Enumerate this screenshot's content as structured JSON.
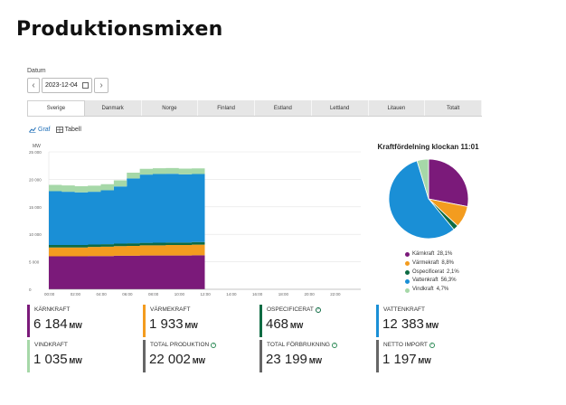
{
  "page_title": "Produktionsmixen",
  "date": {
    "label": "Datum",
    "value": "2023-12-04",
    "prev": "‹",
    "next": "›"
  },
  "tabs": [
    {
      "label": "Sverige",
      "active": true
    },
    {
      "label": "Danmark",
      "active": false
    },
    {
      "label": "Norge",
      "active": false
    },
    {
      "label": "Finland",
      "active": false
    },
    {
      "label": "Estland",
      "active": false
    },
    {
      "label": "Lettland",
      "active": false
    },
    {
      "label": "Litauen",
      "active": false
    },
    {
      "label": "Totalt",
      "active": false
    }
  ],
  "view_toggle": {
    "graf": "Graf",
    "tabell": "Tabell"
  },
  "colors": {
    "karnkraft": "#7b1a7a",
    "varmekraft": "#f39c1f",
    "ospecificerat": "#0e6b43",
    "vattenkraft": "#1a8fd6",
    "vindkraft": "#a6d8a8"
  },
  "chart_data": [
    {
      "type": "area",
      "ylabel": "MW",
      "ylim": [
        0,
        25000
      ],
      "yticks": [
        "0",
        "5 000",
        "10 000",
        "15 000",
        "20 000",
        "25 000"
      ],
      "xticks": [
        "00:00",
        "02:00",
        "04:00",
        "06:00",
        "08:00",
        "10:00",
        "12:00",
        "14:00",
        "16:00",
        "18:00",
        "20:00",
        "22:00"
      ],
      "x": [
        "00:00",
        "01:00",
        "02:00",
        "03:00",
        "04:00",
        "05:00",
        "06:00",
        "07:00",
        "08:00",
        "09:00",
        "10:00",
        "11:00"
      ],
      "series": [
        {
          "name": "Kärnkraft",
          "values": [
            6000,
            6000,
            6000,
            6050,
            6050,
            6100,
            6100,
            6150,
            6150,
            6150,
            6150,
            6184
          ]
        },
        {
          "name": "Värmekraft",
          "values": [
            1600,
            1600,
            1600,
            1650,
            1700,
            1750,
            1800,
            1850,
            1850,
            1900,
            1900,
            1933
          ]
        },
        {
          "name": "Ospecificerat",
          "values": [
            450,
            450,
            450,
            450,
            460,
            460,
            460,
            460,
            465,
            465,
            468,
            468
          ]
        },
        {
          "name": "Vattenkraft",
          "values": [
            9800,
            9700,
            9600,
            9600,
            9800,
            10400,
            11800,
            12400,
            12500,
            12500,
            12400,
            12383
          ]
        },
        {
          "name": "Vindkraft",
          "values": [
            1150,
            1150,
            1100,
            1100,
            1100,
            1100,
            1050,
            1050,
            1050,
            1050,
            1040,
            1035
          ]
        }
      ]
    },
    {
      "type": "pie",
      "title": "Kraftfördelning klockan 11:01",
      "series": [
        {
          "name": "Kärnkraft",
          "value": 28.1,
          "label": "28,1%"
        },
        {
          "name": "Värmekraft",
          "value": 8.8,
          "label": "8,8%"
        },
        {
          "name": "Ospecificerat",
          "value": 2.1,
          "label": "2,1%"
        },
        {
          "name": "Vattenkraft",
          "value": 56.3,
          "label": "56,3%"
        },
        {
          "name": "Vindkraft",
          "value": 4.7,
          "label": "4,7%"
        }
      ]
    }
  ],
  "legend": [
    {
      "name": "Kärnkraft",
      "pct": "28,1%",
      "color": "#7b1a7a"
    },
    {
      "name": "Värmekraft",
      "pct": "8,8%",
      "color": "#f39c1f"
    },
    {
      "name": "Ospecificerat",
      "pct": "2,1%",
      "color": "#0e6b43"
    },
    {
      "name": "Vattenkraft",
      "pct": "56,3%",
      "color": "#1a8fd6"
    },
    {
      "name": "Vindkraft",
      "pct": "4,7%",
      "color": "#a6d8a8"
    }
  ],
  "stats": [
    {
      "label": "KÄRNKRAFT",
      "value": "6 184",
      "unit": "MW",
      "color": "#7b1a7a",
      "info": false
    },
    {
      "label": "VÄRMEKRAFT",
      "value": "1 933",
      "unit": "MW",
      "color": "#f39c1f",
      "info": false
    },
    {
      "label": "OSPECIFICERAT",
      "value": "468",
      "unit": "MW",
      "color": "#0e6b43",
      "info": true
    },
    {
      "label": "VATTENKRAFT",
      "value": "12 383",
      "unit": "MW",
      "color": "#1a8fd6",
      "info": false
    },
    {
      "label": "VINDKRAFT",
      "value": "1 035",
      "unit": "MW",
      "color": "#a6d8a8",
      "info": false
    },
    {
      "label": "TOTAL PRODUKTION",
      "value": "22 002",
      "unit": "MW",
      "color": "#666666",
      "info": true
    },
    {
      "label": "TOTAL FÖRBRUKNING",
      "value": "23 199",
      "unit": "MW",
      "color": "#666666",
      "info": true
    },
    {
      "label": "NETTO IMPORT",
      "value": "1 197",
      "unit": "MW",
      "color": "#666666",
      "info": true
    }
  ]
}
